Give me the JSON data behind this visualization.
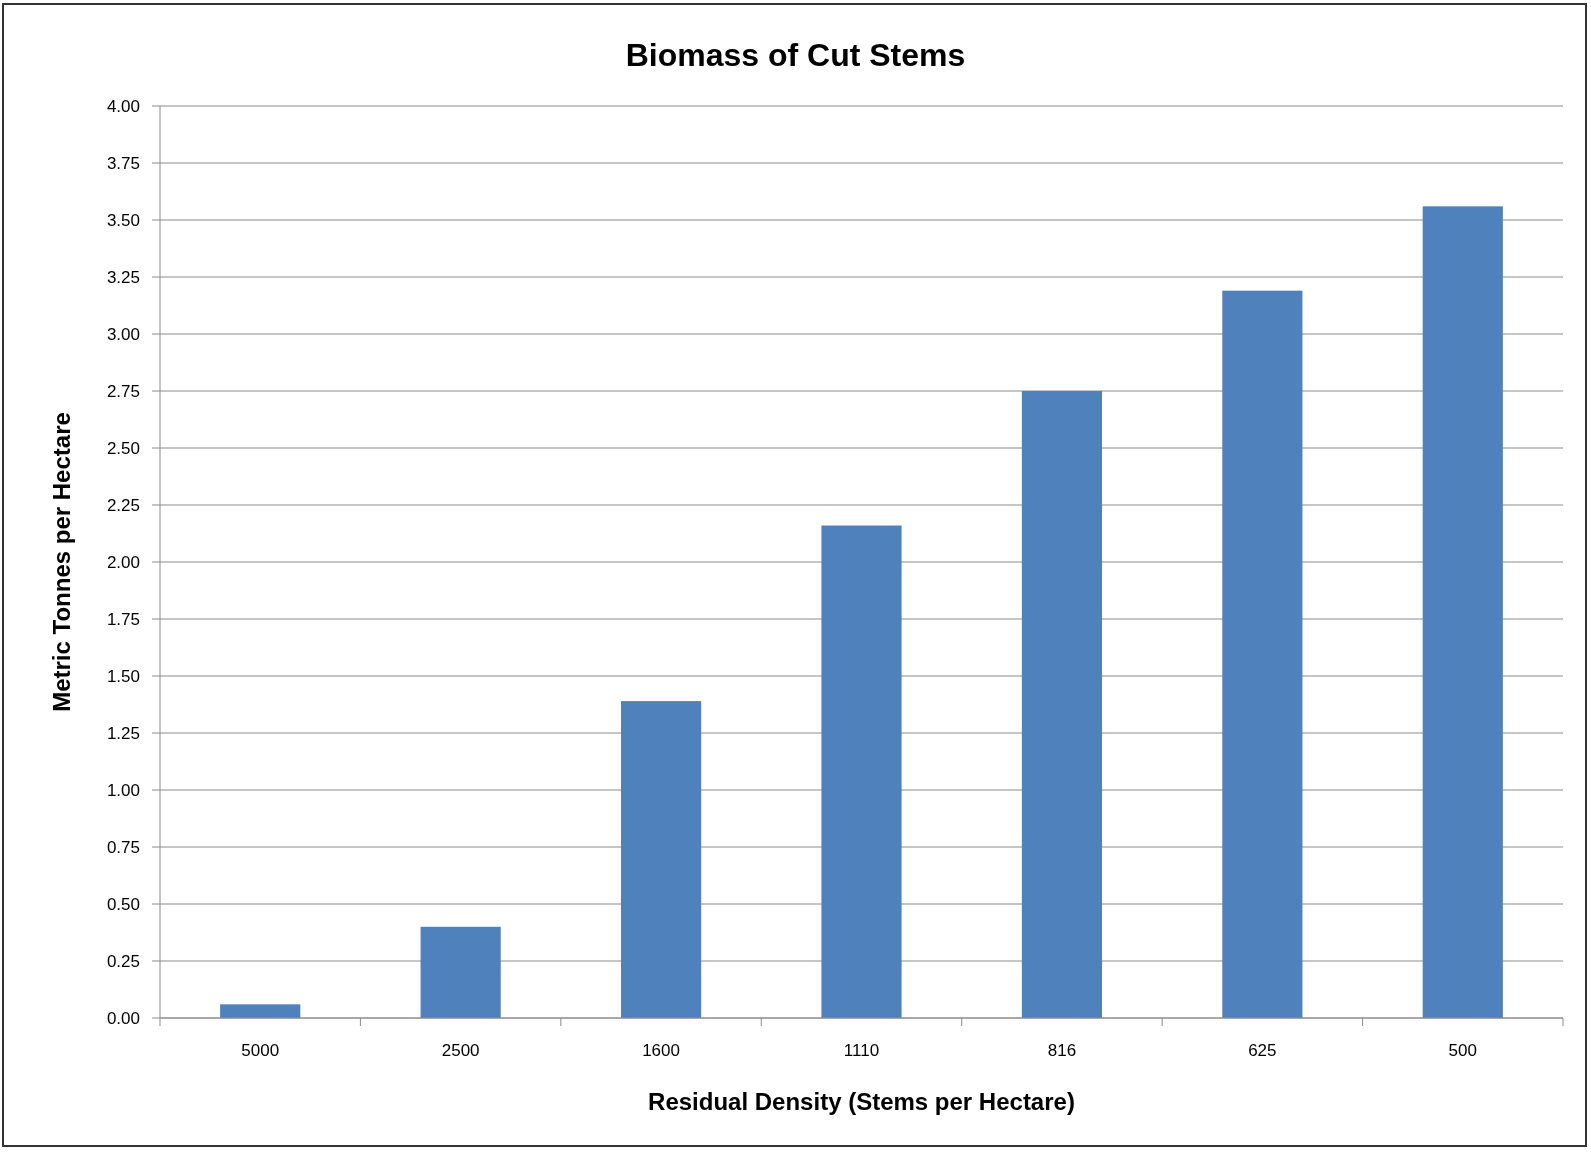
{
  "chart_data": {
    "type": "bar",
    "title": "Biomass of Cut Stems",
    "xlabel": "Residual Density (Stems per Hectare)",
    "ylabel": "Metric Tonnes per Hectare",
    "categories": [
      "5000",
      "2500",
      "1600",
      "1110",
      "816",
      "625",
      "500"
    ],
    "values": [
      0.06,
      0.4,
      1.39,
      2.16,
      2.75,
      3.19,
      3.56
    ],
    "color": "#4f81bd",
    "ylim": [
      0,
      4
    ],
    "yticks": [
      {
        "value": 0,
        "label": "0.00"
      },
      {
        "value": 0.25,
        "label": "0.25"
      },
      {
        "value": 0.5,
        "label": "0.50"
      },
      {
        "value": 0.75,
        "label": "0.75"
      },
      {
        "value": 1,
        "label": "1.00"
      },
      {
        "value": 1.25,
        "label": "1.25"
      },
      {
        "value": 1.5,
        "label": "1.50"
      },
      {
        "value": 1.75,
        "label": "1.75"
      },
      {
        "value": 2,
        "label": "2.00"
      },
      {
        "value": 2.25,
        "label": "2.25"
      },
      {
        "value": 2.5,
        "label": "2.50"
      },
      {
        "value": 2.75,
        "label": "2.75"
      },
      {
        "value": 3,
        "label": "3.00"
      },
      {
        "value": 3.25,
        "label": "3.25"
      },
      {
        "value": 3.5,
        "label": "3.50"
      },
      {
        "value": 3.75,
        "label": "3.75"
      },
      {
        "value": 4,
        "label": "4.00"
      }
    ],
    "grid": "y"
  }
}
